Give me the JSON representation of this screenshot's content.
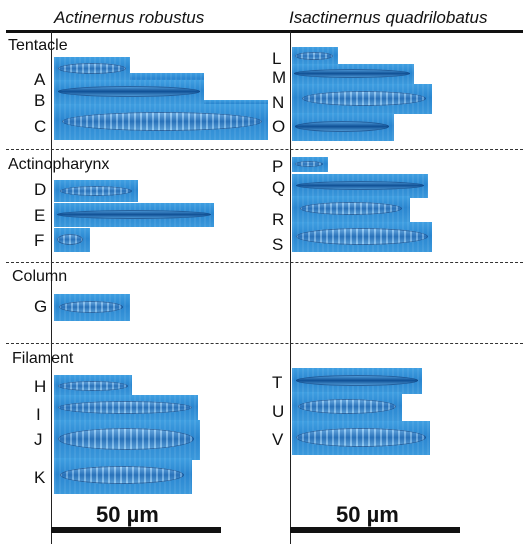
{
  "headers": {
    "left_species": "Actinernus robustus",
    "right_species": "Isactinernus quadrilobatus"
  },
  "sections": {
    "tentacle": "Tentacle",
    "actinopharynx": "Actinopharynx",
    "column": "Column",
    "filament": "Filament"
  },
  "labels": [
    "A",
    "B",
    "C",
    "D",
    "E",
    "F",
    "G",
    "H",
    "I",
    "J",
    "K",
    "L",
    "M",
    "N",
    "O",
    "P",
    "Q",
    "R",
    "S",
    "T",
    "U",
    "V"
  ],
  "scale_bars": {
    "left": "50 µm",
    "right": "50 µm"
  },
  "colors": {
    "tile_blue": "#2a86d0",
    "rule": "#111111"
  }
}
